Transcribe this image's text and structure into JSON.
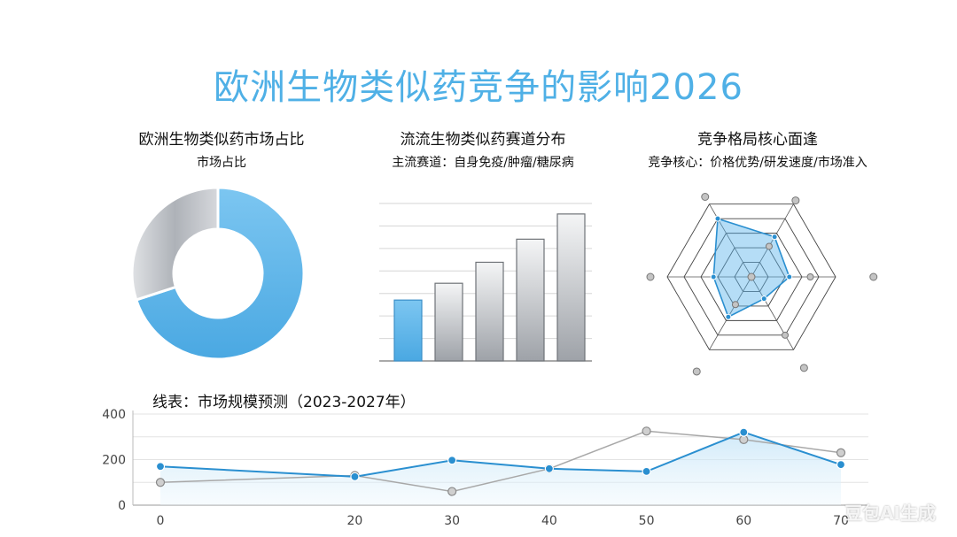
{
  "page": {
    "title": "欧洲生物类似药竞争的影响2026",
    "watermark": "豆包AI生成"
  },
  "colors": {
    "title": "#4fb0e6",
    "accent_blue": "#5ab4ea",
    "line_blue": "#2a8fd0",
    "line_gray": "#a8a8a8",
    "gray_fill": "#b8bcc2"
  },
  "chart_data": [
    {
      "type": "pie",
      "title": "欧洲生物类似药市场占比",
      "subtitle": "市场占比",
      "slices": [
        {
          "value": 70,
          "color": "#5ab4ea"
        },
        {
          "value": 30,
          "color": "#b3b7bd"
        }
      ],
      "donut": true
    },
    {
      "type": "bar",
      "title": "流流生物类似药赛道分布",
      "subtitle": "主流赛道：自身免疫/肿瘤/糖尿病",
      "categories": [
        "",
        "",
        "",
        "",
        ""
      ],
      "values": [
        29,
        37,
        47,
        58,
        70
      ],
      "ylim": [
        0,
        75
      ],
      "grid": true
    },
    {
      "type": "radar",
      "title": "竞争格局核心面逢",
      "subtitle": "竞争核心：价格优势/研发速度/市场准入",
      "axes": 6,
      "rings": 5,
      "values": [
        0.55,
        0.45,
        0.3,
        0.55,
        0.45,
        0.8
      ],
      "outer_points": [
        1.05,
        1.45,
        1.25,
        1.3,
        1.2,
        1.1
      ],
      "inner_points": [
        0.42,
        0.7,
        0.8,
        0.38,
        0.0,
        0.0
      ]
    },
    {
      "type": "line",
      "title": "线表：市场规模预测（2023-2027年）",
      "x": [
        0,
        20,
        30,
        40,
        50,
        60,
        70
      ],
      "x_tick_labels": [
        "0",
        "20",
        "30",
        "40",
        "50",
        "60",
        "70"
      ],
      "ylim": [
        0,
        400
      ],
      "y_ticks": [
        0,
        200,
        400
      ],
      "grid": true,
      "series": [
        {
          "values": [
            170,
            125,
            197,
            160,
            148,
            320,
            178
          ],
          "color": "#2a8fd0",
          "fill": true
        },
        {
          "values": [
            100,
            130,
            60,
            160,
            325,
            288,
            230
          ],
          "color": "#a8a8a8",
          "fill": false
        }
      ]
    }
  ]
}
